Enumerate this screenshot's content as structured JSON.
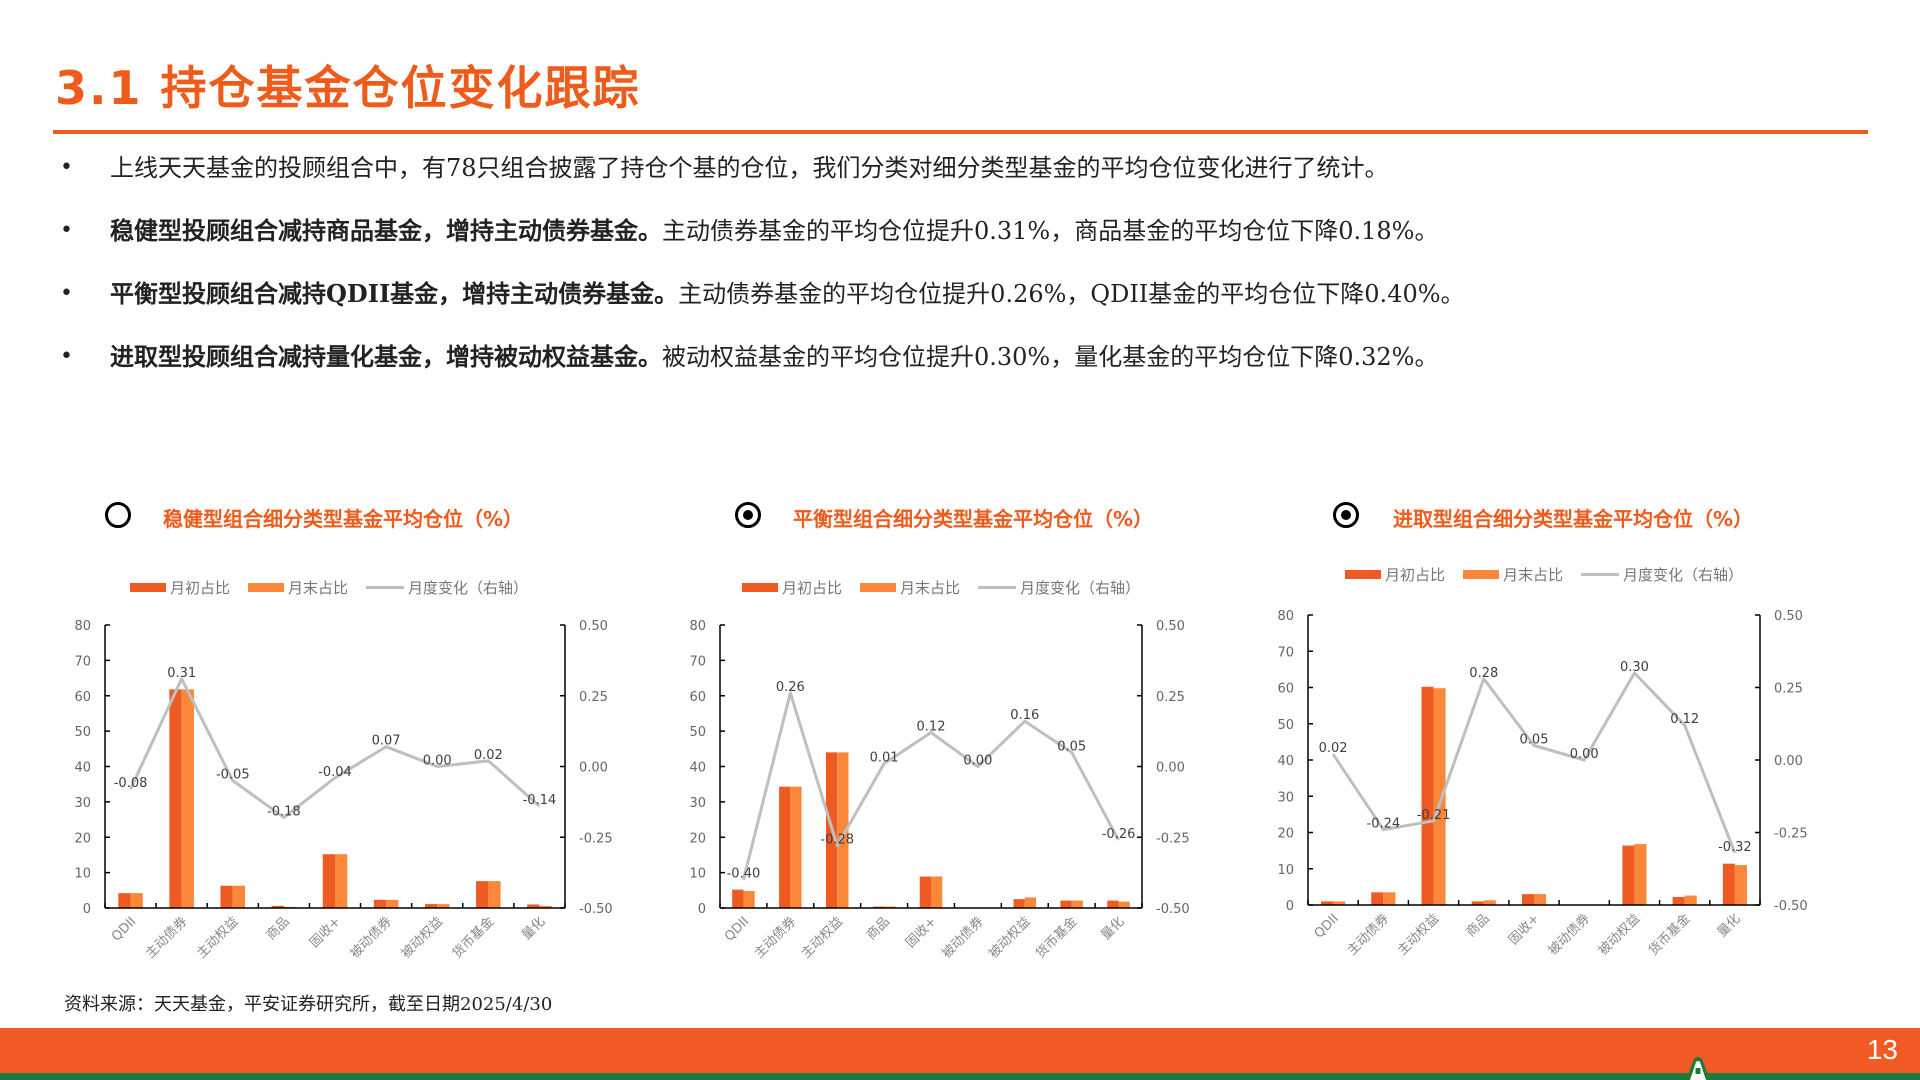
{
  "page": {
    "title": "3.1  持仓基金仓位变化跟踪",
    "page_number": "13",
    "source": "资料来源：天天基金，平安证券研究所，截至日期2025/4/30",
    "colors": {
      "accent": "#EE5B1A",
      "bar_start": "#EE5B22",
      "bar_end": "#FA873A",
      "line": "#BFBFBF",
      "footer": "#F15A24",
      "footer_green": "#1E7A3C"
    }
  },
  "bullets": [
    {
      "bold": "",
      "text": "上线天天基金的投顾组合中，有78只组合披露了持仓个基的仓位，我们分类对细分类型基金的平均仓位变化进行了统计。"
    },
    {
      "bold": "稳健型投顾组合减持商品基金，增持主动债券基金。",
      "text": "主动债券基金的平均仓位提升0.31%，商品基金的平均仓位下降0.18%。"
    },
    {
      "bold": "平衡型投顾组合减持QDII基金，增持主动债券基金。",
      "text": "主动债券基金的平均仓位提升0.26%，QDII基金的平均仓位下降0.40%。"
    },
    {
      "bold": "进取型投顾组合减持量化基金，增持被动权益基金。",
      "text": "被动权益基金的平均仓位提升0.30%，量化基金的平均仓位下降0.32%。"
    }
  ],
  "legend": {
    "start": "月初占比",
    "end": "月末占比",
    "change": "月度变化（右轴）"
  },
  "chart_data": [
    {
      "type": "bar",
      "title": "稳健型组合细分类型基金平均仓位（%）",
      "selected": false,
      "categories": [
        "QDII",
        "主动债券",
        "主动权益",
        "商品",
        "固收+",
        "被动债券",
        "被动权益",
        "货币基金",
        "量化"
      ],
      "series": [
        {
          "name": "月初占比",
          "type": "bar",
          "axis": "left",
          "values": [
            4.2,
            61.8,
            6.3,
            0.6,
            15.2,
            2.3,
            1.1,
            7.6,
            1.0
          ]
        },
        {
          "name": "月末占比",
          "type": "bar",
          "axis": "left",
          "values": [
            4.2,
            61.8,
            6.3,
            0.3,
            15.2,
            2.3,
            1.1,
            7.6,
            0.6
          ]
        },
        {
          "name": "月度变化（右轴）",
          "type": "line",
          "axis": "right",
          "values": [
            -0.08,
            0.31,
            -0.05,
            -0.18,
            -0.04,
            0.07,
            0.0,
            0.02,
            -0.14
          ]
        }
      ],
      "data_labels": [
        "-0.08",
        "0.31",
        "-0.05",
        "-0.18",
        "-0.04",
        "0.07",
        "0.00",
        "0.02",
        "-0.14"
      ],
      "ylim": [
        0,
        80
      ],
      "yticks": [
        "0",
        "10",
        "20",
        "30",
        "40",
        "50",
        "60",
        "70",
        "80"
      ],
      "y2lim": [
        -0.5,
        0.5
      ],
      "y2ticks": [
        "-0.50",
        "-0.25",
        "0.00",
        "0.25",
        "0.50"
      ],
      "grid": false,
      "legend_position": "top"
    },
    {
      "type": "bar",
      "title": "平衡型组合细分类型基金平均仓位（%）",
      "selected": true,
      "categories": [
        "QDII",
        "主动债券",
        "主动权益",
        "商品",
        "固收+",
        "被动债券",
        "被动权益",
        "货币基金",
        "量化"
      ],
      "series": [
        {
          "name": "月初占比",
          "type": "bar",
          "axis": "left",
          "values": [
            5.2,
            34.3,
            44.0,
            0.4,
            8.9,
            0.0,
            2.5,
            2.1,
            2.1
          ]
        },
        {
          "name": "月末占比",
          "type": "bar",
          "axis": "left",
          "values": [
            4.8,
            34.3,
            44.0,
            0.4,
            8.9,
            0.0,
            3.0,
            2.1,
            1.8
          ]
        },
        {
          "name": "月度变化（右轴）",
          "type": "line",
          "axis": "right",
          "values": [
            -0.4,
            0.26,
            -0.28,
            0.01,
            0.12,
            0.0,
            0.16,
            0.05,
            -0.26
          ]
        }
      ],
      "data_labels": [
        "-0.40",
        "0.26",
        "-0.28",
        "0.01",
        "0.12",
        "0.00",
        "0.16",
        "0.05",
        "-0.26"
      ],
      "ylim": [
        0,
        80
      ],
      "yticks": [
        "0",
        "10",
        "20",
        "30",
        "40",
        "50",
        "60",
        "70",
        "80"
      ],
      "y2lim": [
        -0.5,
        0.5
      ],
      "y2ticks": [
        "-0.50",
        "-0.25",
        "0.00",
        "0.25",
        "0.50"
      ],
      "grid": false,
      "legend_position": "top"
    },
    {
      "type": "bar",
      "title": "进取型组合细分类型基金平均仓位（%）",
      "selected": true,
      "categories": [
        "QDII",
        "主动债券",
        "主动权益",
        "商品",
        "固收+",
        "被动债券",
        "被动权益",
        "货币基金",
        "量化"
      ],
      "series": [
        {
          "name": "月初占比",
          "type": "bar",
          "axis": "left",
          "values": [
            1.0,
            3.5,
            60.2,
            1.0,
            3.0,
            0.0,
            16.4,
            2.2,
            11.4
          ]
        },
        {
          "name": "月末占比",
          "type": "bar",
          "axis": "left",
          "values": [
            1.0,
            3.5,
            59.8,
            1.3,
            3.0,
            0.0,
            16.8,
            2.6,
            11.0
          ]
        },
        {
          "name": "月度变化（右轴）",
          "type": "line",
          "axis": "right",
          "values": [
            0.02,
            -0.24,
            -0.21,
            0.28,
            0.05,
            0.0,
            0.3,
            0.12,
            -0.32
          ]
        }
      ],
      "data_labels": [
        "0.02",
        "-0.24",
        "-0.21",
        "0.28",
        "0.05",
        "0.00",
        "0.30",
        "0.12",
        "-0.32"
      ],
      "ylim": [
        0,
        80
      ],
      "yticks": [
        "0",
        "10",
        "20",
        "30",
        "40",
        "50",
        "60",
        "70",
        "80"
      ],
      "y2lim": [
        -0.5,
        0.5
      ],
      "y2ticks": [
        "-0.50",
        "-0.25",
        "0.00",
        "0.25",
        "0.50"
      ],
      "grid": false,
      "legend_position": "top"
    }
  ]
}
